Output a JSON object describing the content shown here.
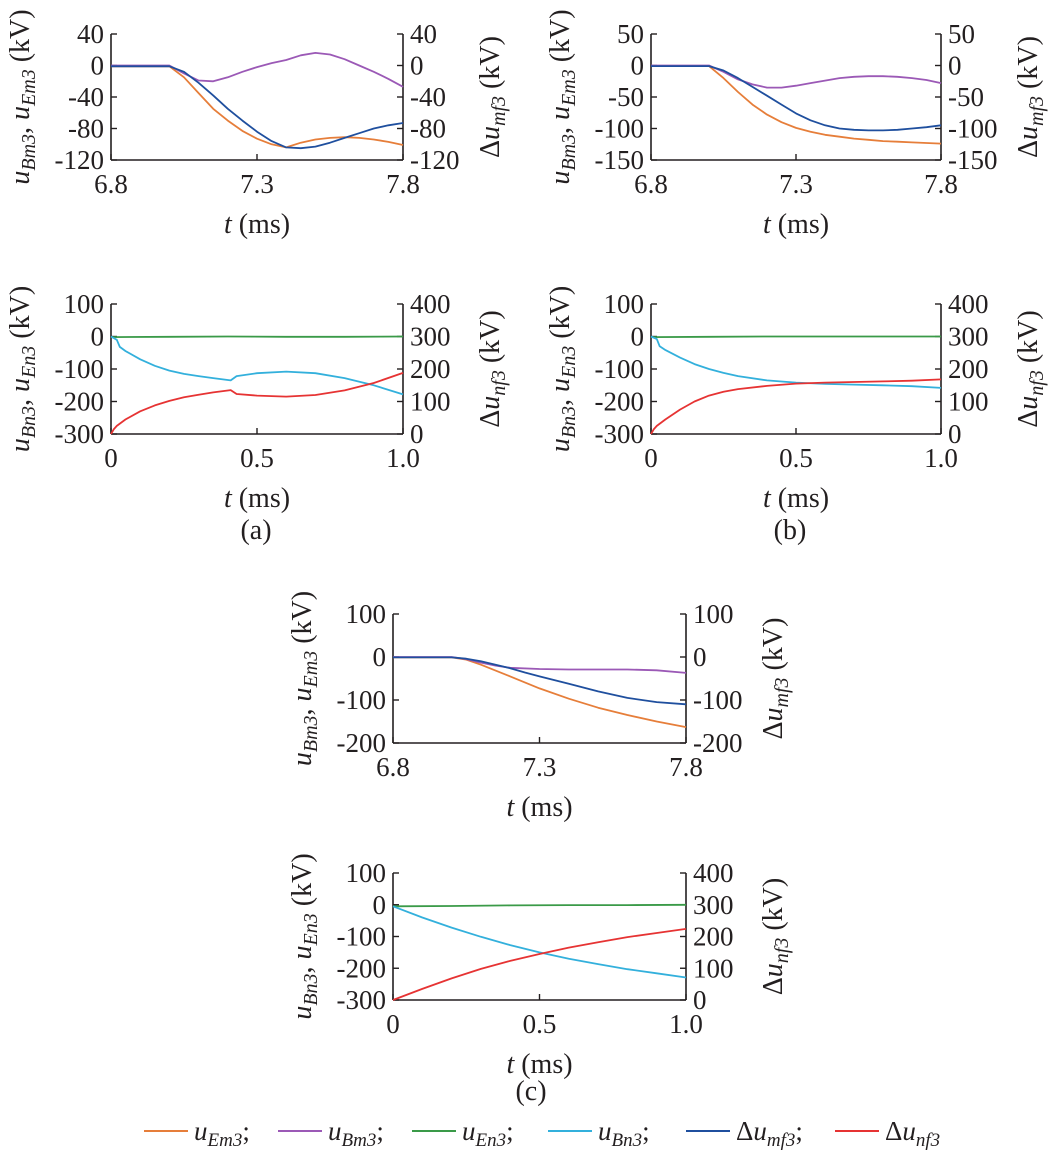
{
  "colors": {
    "u_Em3": "#e67e3a",
    "u_Bm3": "#9b59b6",
    "u_En3": "#3a9a48",
    "u_Bn3": "#33b0dc",
    "du_mf3": "#1f4f9e",
    "du_nf3": "#e63333",
    "axis": "#231f20"
  },
  "panel_labels": [
    "(a)",
    "(b)",
    "(c)"
  ],
  "legend": {
    "items": [
      {
        "key": "u_Em3",
        "base": "u",
        "sub": "Em3",
        "sep": ";"
      },
      {
        "key": "u_Bm3",
        "base": "u",
        "sub": "Bm3",
        "sep": ";"
      },
      {
        "key": "u_En3",
        "base": "u",
        "sub": "En3",
        "sep": ";"
      },
      {
        "key": "u_Bn3",
        "base": "u",
        "sub": "Bn3",
        "sep": ";"
      },
      {
        "key": "du_mf3",
        "base": "Δu",
        "sub": "mf3",
        "sep": ";"
      },
      {
        "key": "du_nf3",
        "base": "Δu",
        "sub": "nf3",
        "sep": ""
      }
    ]
  },
  "chart_data": [
    {
      "id": "a_top",
      "panel": "(a)",
      "type": "line",
      "xlabel": {
        "var": "t",
        "unit": " (ms)"
      },
      "ylabel_left": "u_Bm3, u_Em3 (kV)",
      "ylabel_right": "Δu_mf3 (kV)",
      "xlim": [
        6.8,
        7.8
      ],
      "xticks": [
        6.8,
        7.3,
        7.8
      ],
      "ylim_left": [
        -120,
        40
      ],
      "yticks_left": [
        -120,
        -80,
        -40,
        0,
        40
      ],
      "ylim_right": [
        -120,
        40
      ],
      "yticks_right": [
        -120,
        -80,
        -40,
        0,
        40
      ],
      "tick_labels": {
        "x": [
          "6.8",
          "7.3",
          "7.8"
        ],
        "left": [
          "-120",
          "-80",
          "-40",
          "0",
          "40"
        ],
        "right": [
          "-120",
          "-80",
          "-40",
          "0",
          "40"
        ]
      },
      "series": [
        {
          "key": "u_Em3",
          "axis": "left",
          "x": [
            6.8,
            7.0,
            7.05,
            7.1,
            7.15,
            7.2,
            7.25,
            7.3,
            7.35,
            7.4,
            7.45,
            7.5,
            7.55,
            7.6,
            7.65,
            7.7,
            7.75,
            7.8
          ],
          "y": [
            -1,
            -1,
            -15,
            -35,
            -55,
            -70,
            -83,
            -93,
            -100,
            -104,
            -98,
            -94,
            -92,
            -91,
            -92,
            -94,
            -97,
            -101
          ]
        },
        {
          "key": "u_Bm3",
          "axis": "left",
          "x": [
            6.8,
            7.0,
            7.05,
            7.1,
            7.15,
            7.2,
            7.25,
            7.3,
            7.35,
            7.4,
            7.45,
            7.5,
            7.55,
            7.6,
            7.65,
            7.7,
            7.75,
            7.8
          ],
          "y": [
            0,
            0,
            -10,
            -19,
            -20,
            -15,
            -8,
            -2,
            3,
            7,
            13,
            16,
            14,
            8,
            0,
            -8,
            -17,
            -27
          ]
        },
        {
          "key": "du_mf3",
          "axis": "right",
          "x": [
            6.8,
            7.0,
            7.05,
            7.1,
            7.15,
            7.2,
            7.25,
            7.3,
            7.35,
            7.4,
            7.45,
            7.5,
            7.55,
            7.6,
            7.65,
            7.7,
            7.75,
            7.8
          ],
          "y": [
            -1,
            -1,
            -8,
            -22,
            -38,
            -55,
            -70,
            -84,
            -96,
            -104,
            -105,
            -103,
            -98,
            -92,
            -86,
            -80,
            -76,
            -73
          ]
        }
      ]
    },
    {
      "id": "a_bottom",
      "panel": "(a)",
      "type": "line",
      "xlabel": {
        "var": "t",
        "unit": " (ms)"
      },
      "ylabel_left": "u_Bn3, u_En3 (kV)",
      "ylabel_right": "Δu_nf3 (kV)",
      "xlim": [
        0,
        1.0
      ],
      "xticks": [
        0,
        0.5,
        1.0
      ],
      "ylim_left": [
        -300,
        100
      ],
      "yticks_left": [
        -300,
        -200,
        -100,
        0,
        100
      ],
      "ylim_right": [
        0,
        400
      ],
      "yticks_right": [
        0,
        100,
        200,
        300,
        400
      ],
      "tick_labels": {
        "x": [
          "0",
          "0.5",
          "1.0"
        ],
        "left": [
          "-300",
          "-200",
          "-100",
          "0",
          "100"
        ],
        "right": [
          "0",
          "100",
          "200",
          "300",
          "400"
        ]
      },
      "series": [
        {
          "key": "u_En3",
          "axis": "left",
          "x": [
            0,
            0.2,
            0.4,
            0.6,
            0.8,
            1.0
          ],
          "y": [
            -2,
            -1,
            0,
            -1,
            -1,
            0
          ]
        },
        {
          "key": "u_Bn3",
          "axis": "left",
          "x": [
            0,
            0.02,
            0.03,
            0.05,
            0.1,
            0.15,
            0.2,
            0.25,
            0.3,
            0.35,
            0.41,
            0.43,
            0.5,
            0.6,
            0.7,
            0.8,
            0.9,
            1.0
          ],
          "y": [
            0,
            -10,
            -32,
            -45,
            -70,
            -90,
            -105,
            -115,
            -122,
            -128,
            -135,
            -122,
            -113,
            -108,
            -113,
            -128,
            -150,
            -178
          ]
        },
        {
          "key": "du_nf3",
          "axis": "right",
          "x": [
            0,
            0.01,
            0.02,
            0.05,
            0.1,
            0.15,
            0.2,
            0.25,
            0.3,
            0.35,
            0.41,
            0.43,
            0.5,
            0.6,
            0.7,
            0.8,
            0.9,
            1.0
          ],
          "y": [
            0,
            15,
            25,
            45,
            70,
            88,
            102,
            113,
            121,
            128,
            135,
            123,
            118,
            115,
            120,
            134,
            157,
            188
          ]
        }
      ]
    },
    {
      "id": "b_top",
      "panel": "(b)",
      "type": "line",
      "xlabel": {
        "var": "t",
        "unit": " (ms)"
      },
      "ylabel_left": "u_Bm3, u_Em3 (kV)",
      "ylabel_right": "Δu_mf3 (kV)",
      "xlim": [
        6.8,
        7.8
      ],
      "xticks": [
        6.8,
        7.3,
        7.8
      ],
      "ylim_left": [
        -150,
        50
      ],
      "yticks_left": [
        -150,
        -100,
        -50,
        0,
        50
      ],
      "ylim_right": [
        -150,
        50
      ],
      "yticks_right": [
        -150,
        -100,
        -50,
        0,
        50
      ],
      "tick_labels": {
        "x": [
          "6.8",
          "7.3",
          "7.8"
        ],
        "left": [
          "-150",
          "-100",
          "-50",
          "0",
          "50"
        ],
        "right": [
          "-150",
          "-100",
          "-50",
          "0",
          "50"
        ]
      },
      "series": [
        {
          "key": "u_Em3",
          "axis": "left",
          "x": [
            6.8,
            7.0,
            7.05,
            7.1,
            7.15,
            7.2,
            7.25,
            7.3,
            7.35,
            7.4,
            7.45,
            7.5,
            7.55,
            7.6,
            7.65,
            7.7,
            7.75,
            7.8
          ],
          "y": [
            -1,
            -1,
            -20,
            -42,
            -62,
            -78,
            -90,
            -99,
            -105,
            -110,
            -113,
            -116,
            -118,
            -120,
            -121,
            -122,
            -123,
            -124
          ]
        },
        {
          "key": "u_Bm3",
          "axis": "left",
          "x": [
            6.8,
            7.0,
            7.05,
            7.1,
            7.15,
            7.2,
            7.25,
            7.3,
            7.35,
            7.4,
            7.45,
            7.5,
            7.55,
            7.6,
            7.65,
            7.7,
            7.75,
            7.8
          ],
          "y": [
            0,
            0,
            -10,
            -22,
            -30,
            -35,
            -35,
            -32,
            -28,
            -24,
            -20,
            -18,
            -17,
            -17,
            -18,
            -20,
            -23,
            -28
          ]
        },
        {
          "key": "du_mf3",
          "axis": "right",
          "x": [
            6.8,
            7.0,
            7.05,
            7.1,
            7.15,
            7.2,
            7.25,
            7.3,
            7.35,
            7.4,
            7.45,
            7.5,
            7.55,
            7.6,
            7.65,
            7.7,
            7.75,
            7.8
          ],
          "y": [
            -1,
            -1,
            -8,
            -20,
            -34,
            -48,
            -62,
            -76,
            -87,
            -95,
            -100,
            -102,
            -103,
            -103,
            -102,
            -100,
            -98,
            -95
          ]
        }
      ]
    },
    {
      "id": "b_bottom",
      "panel": "(b)",
      "type": "line",
      "xlabel": {
        "var": "t",
        "unit": " (ms)"
      },
      "ylabel_left": "u_Bn3, u_En3 (kV)",
      "ylabel_right": "Δu_nf3 (kV)",
      "xlim": [
        0,
        1.0
      ],
      "xticks": [
        0,
        0.5,
        1.0
      ],
      "ylim_left": [
        -300,
        100
      ],
      "yticks_left": [
        -300,
        -200,
        -100,
        0,
        100
      ],
      "ylim_right": [
        0,
        400
      ],
      "yticks_right": [
        0,
        100,
        200,
        300,
        400
      ],
      "tick_labels": {
        "x": [
          "0",
          "0.5",
          "1.0"
        ],
        "left": [
          "-300",
          "-200",
          "-100",
          "0",
          "100"
        ],
        "right": [
          "0",
          "100",
          "200",
          "300",
          "400"
        ]
      },
      "series": [
        {
          "key": "u_En3",
          "axis": "left",
          "x": [
            0,
            0.2,
            0.4,
            0.6,
            0.8,
            1.0
          ],
          "y": [
            -2,
            -1,
            0,
            0,
            0,
            0
          ]
        },
        {
          "key": "u_Bn3",
          "axis": "left",
          "x": [
            0,
            0.02,
            0.03,
            0.05,
            0.1,
            0.15,
            0.2,
            0.25,
            0.3,
            0.4,
            0.5,
            0.6,
            0.7,
            0.8,
            0.9,
            1.0
          ],
          "y": [
            0,
            -8,
            -30,
            -42,
            -65,
            -85,
            -100,
            -112,
            -122,
            -135,
            -142,
            -146,
            -148,
            -150,
            -153,
            -158
          ]
        },
        {
          "key": "du_nf3",
          "axis": "right",
          "x": [
            0,
            0.01,
            0.02,
            0.05,
            0.1,
            0.15,
            0.2,
            0.25,
            0.3,
            0.4,
            0.5,
            0.6,
            0.7,
            0.8,
            0.9,
            1.0
          ],
          "y": [
            0,
            15,
            25,
            45,
            75,
            100,
            118,
            130,
            138,
            148,
            155,
            158,
            160,
            162,
            164,
            168
          ]
        }
      ]
    },
    {
      "id": "c_top",
      "panel": "(c)",
      "type": "line",
      "xlabel": {
        "var": "t",
        "unit": " (ms)"
      },
      "ylabel_left": "u_Bm3, u_Em3 (kV)",
      "ylabel_right": "Δu_mf3 (kV)",
      "xlim": [
        6.8,
        7.8
      ],
      "xticks": [
        6.8,
        7.3,
        7.8
      ],
      "ylim_left": [
        -200,
        100
      ],
      "yticks_left": [
        -200,
        -100,
        0,
        100
      ],
      "ylim_right": [
        -200,
        100
      ],
      "yticks_right": [
        -200,
        -100,
        0,
        100
      ],
      "tick_labels": {
        "x": [
          "6.8",
          "7.3",
          "7.8"
        ],
        "left": [
          "-200",
          "-100",
          "0",
          "100"
        ],
        "right": [
          "-200",
          "-100",
          "0",
          "100"
        ]
      },
      "series": [
        {
          "key": "u_Em3",
          "axis": "left",
          "x": [
            6.8,
            7.0,
            7.05,
            7.1,
            7.2,
            7.3,
            7.4,
            7.5,
            7.6,
            7.7,
            7.8
          ],
          "y": [
            -1,
            -1,
            -6,
            -18,
            -45,
            -73,
            -97,
            -118,
            -135,
            -150,
            -163
          ]
        },
        {
          "key": "u_Bm3",
          "axis": "left",
          "x": [
            6.8,
            7.0,
            7.05,
            7.1,
            7.15,
            7.2,
            7.3,
            7.4,
            7.5,
            7.6,
            7.7,
            7.8
          ],
          "y": [
            0,
            0,
            -5,
            -13,
            -20,
            -25,
            -28,
            -29,
            -29,
            -29,
            -31,
            -37
          ]
        },
        {
          "key": "du_mf3",
          "axis": "right",
          "x": [
            6.8,
            7.0,
            7.05,
            7.1,
            7.15,
            7.2,
            7.25,
            7.3,
            7.4,
            7.5,
            7.6,
            7.7,
            7.8
          ],
          "y": [
            -1,
            -1,
            -4,
            -10,
            -18,
            -26,
            -36,
            -45,
            -62,
            -80,
            -95,
            -105,
            -110
          ]
        }
      ]
    },
    {
      "id": "c_bottom",
      "panel": "(c)",
      "type": "line",
      "xlabel": {
        "var": "t",
        "unit": " (ms)"
      },
      "ylabel_left": "u_Bn3, u_En3 (kV)",
      "ylabel_right": "Δu_nf3 (kV)",
      "xlim": [
        0,
        1.0
      ],
      "xticks": [
        0,
        0.5,
        1.0
      ],
      "ylim_left": [
        -300,
        100
      ],
      "yticks_left": [
        -300,
        -200,
        -100,
        0,
        100
      ],
      "ylim_right": [
        0,
        400
      ],
      "yticks_right": [
        0,
        100,
        200,
        300,
        400
      ],
      "tick_labels": {
        "x": [
          "0",
          "0.5",
          "1.0"
        ],
        "left": [
          "-300",
          "-200",
          "-100",
          "0",
          "100"
        ],
        "right": [
          "0",
          "100",
          "200",
          "300",
          "400"
        ]
      },
      "series": [
        {
          "key": "u_En3",
          "axis": "left",
          "x": [
            0,
            0.2,
            0.4,
            0.6,
            0.8,
            1.0
          ],
          "y": [
            -5,
            -4,
            -2,
            -1,
            -1,
            0
          ]
        },
        {
          "key": "u_Bn3",
          "axis": "left",
          "x": [
            0,
            0.1,
            0.2,
            0.3,
            0.4,
            0.5,
            0.6,
            0.7,
            0.8,
            0.9,
            1.0
          ],
          "y": [
            -5,
            -40,
            -72,
            -101,
            -127,
            -150,
            -170,
            -187,
            -203,
            -216,
            -229
          ]
        },
        {
          "key": "du_nf3",
          "axis": "right",
          "x": [
            0,
            0.1,
            0.2,
            0.3,
            0.4,
            0.5,
            0.6,
            0.7,
            0.8,
            0.9,
            1.0
          ],
          "y": [
            0,
            35,
            68,
            98,
            123,
            145,
            165,
            182,
            198,
            211,
            224
          ]
        }
      ]
    }
  ]
}
